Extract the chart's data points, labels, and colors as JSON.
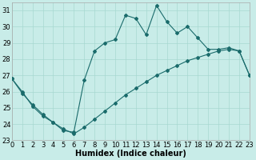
{
  "xlabel": "Humidex (Indice chaleur)",
  "background_color": "#c8ece8",
  "line_color": "#1a6b6b",
  "grid_color": "#a8d8d0",
  "xlim": [
    0,
    23
  ],
  "ylim": [
    23,
    31.5
  ],
  "yticks": [
    23,
    24,
    25,
    26,
    27,
    28,
    29,
    30,
    31
  ],
  "xticks": [
    0,
    1,
    2,
    3,
    4,
    5,
    6,
    7,
    8,
    9,
    10,
    11,
    12,
    13,
    14,
    15,
    16,
    17,
    18,
    19,
    20,
    21,
    22,
    23
  ],
  "line_upper_x": [
    0,
    1,
    2,
    3,
    4,
    5,
    6,
    7,
    8,
    9,
    10,
    11,
    12,
    13,
    14,
    15,
    16,
    17,
    18,
    19,
    20,
    21,
    22,
    23
  ],
  "line_upper_y": [
    26.8,
    26.0,
    25.1,
    24.5,
    24.1,
    23.6,
    23.5,
    26.7,
    28.5,
    29.0,
    29.2,
    30.7,
    30.5,
    29.5,
    31.3,
    30.3,
    29.6,
    30.0,
    29.3,
    28.6,
    28.6,
    28.7,
    28.5,
    27.0
  ],
  "line_lower_x": [
    0,
    1,
    2,
    3,
    4,
    5,
    6,
    7,
    8,
    9,
    10,
    11,
    12,
    13,
    14,
    15,
    16,
    17,
    18,
    19,
    20,
    21,
    22,
    23
  ],
  "line_lower_y": [
    26.8,
    25.9,
    25.2,
    24.6,
    24.1,
    23.7,
    23.4,
    23.8,
    24.3,
    24.8,
    25.3,
    25.8,
    26.2,
    26.6,
    27.0,
    27.3,
    27.6,
    27.9,
    28.1,
    28.3,
    28.5,
    28.6,
    28.5,
    27.0
  ],
  "xlabel_fontsize": 7,
  "tick_fontsize": 6
}
